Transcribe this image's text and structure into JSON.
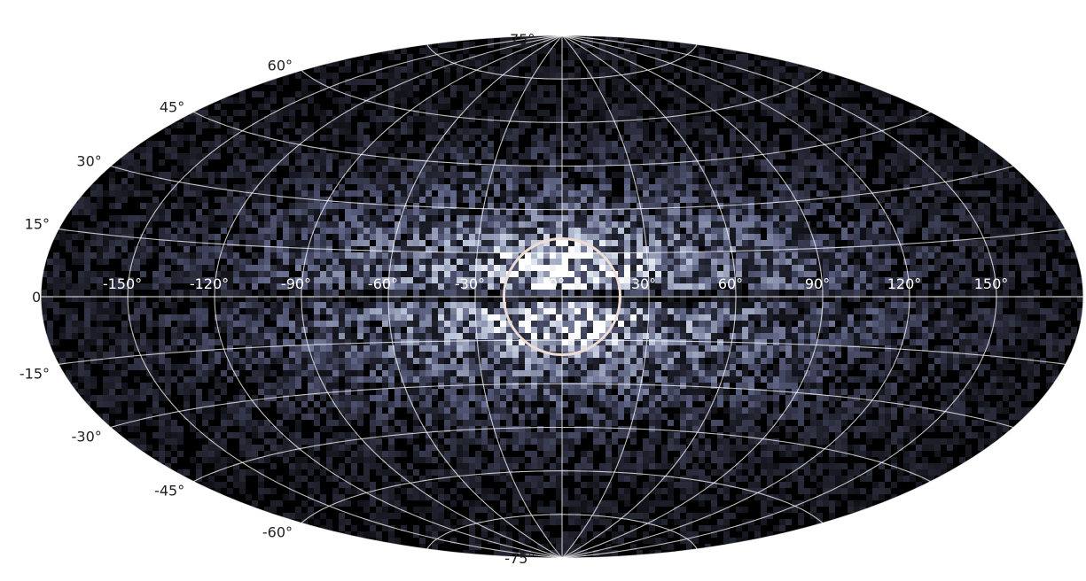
{
  "chart_data": {
    "type": "heatmap",
    "projection": "aitoff",
    "title": "",
    "xlabel": "",
    "ylabel": "",
    "xlim": [
      -180,
      180
    ],
    "ylim": [
      -90,
      90
    ],
    "grid": true,
    "colormap": [
      "#000000",
      "#5a5f80",
      "#b8c2d6",
      "#ffffff"
    ],
    "lon_ticks": [
      -150,
      -120,
      -90,
      -60,
      -30,
      0,
      30,
      60,
      90,
      120,
      150
    ],
    "lon_tick_labels": [
      "-150°",
      "-120°",
      "-90°",
      "-60°",
      "-30°",
      "0°",
      "30°",
      "60°",
      "90°",
      "120°",
      "150°"
    ],
    "lat_ticks": [
      75,
      60,
      45,
      30,
      15,
      0,
      -15,
      -30,
      -45,
      -60,
      -75
    ],
    "lat_tick_labels": [
      "75°",
      "60°",
      "45°",
      "30°",
      "15°",
      "0°",
      "-15°",
      "-30°",
      "-45°",
      "-60°",
      "-75°"
    ],
    "density_model": {
      "bulge_peak_lon": 0,
      "bulge_peak_lat": [
        6,
        -7
      ],
      "dust_lane_lat": 0,
      "disk_extent_lon": [
        -120,
        120
      ]
    },
    "annotation_circle": {
      "center_lon": 0,
      "center_lat": 0,
      "radius_deg": 20,
      "color": "#f0dcd6"
    }
  }
}
